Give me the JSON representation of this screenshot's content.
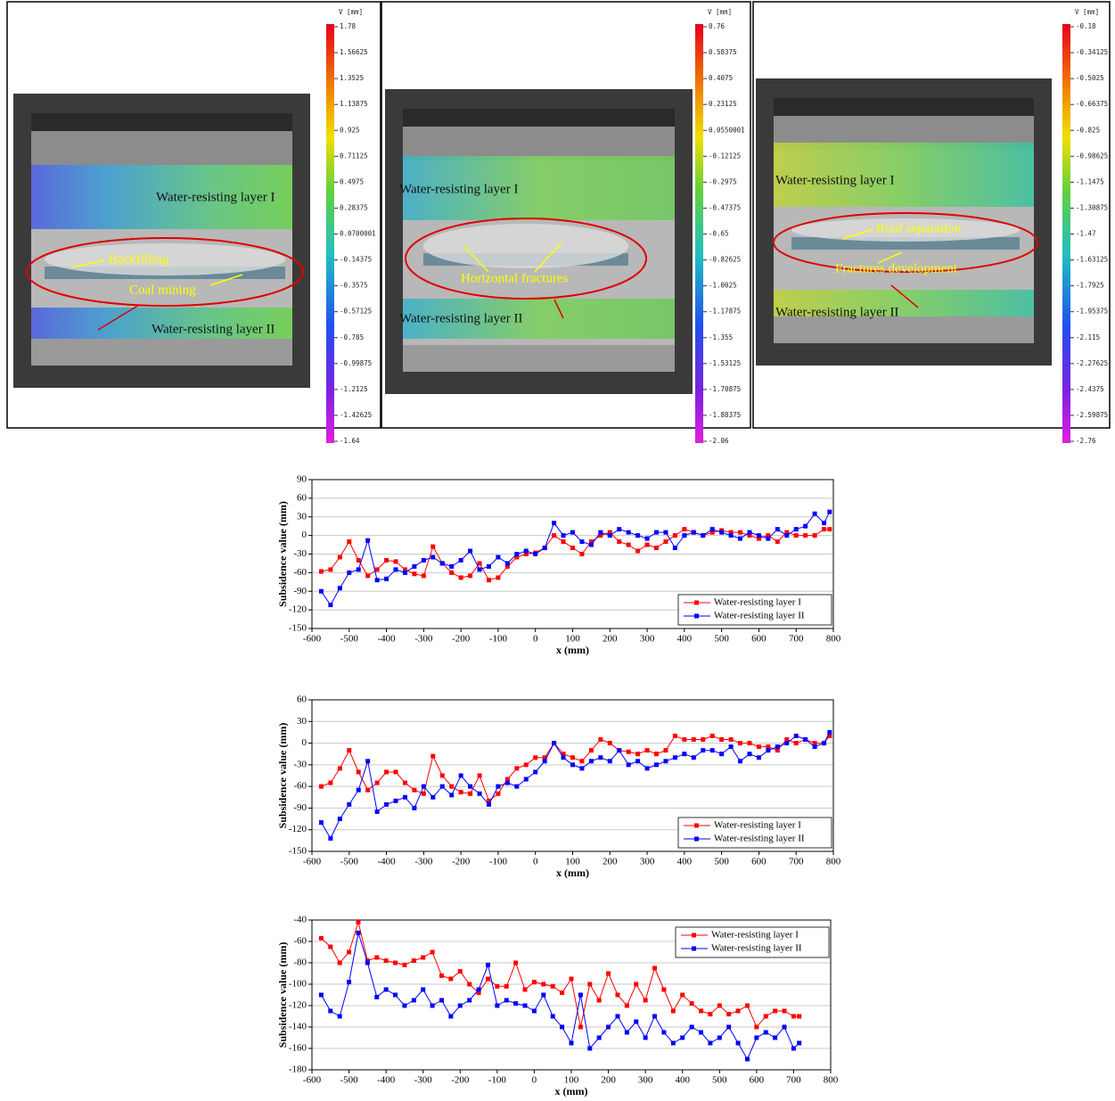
{
  "panels": [
    {
      "colorbar_title": "V [mm]",
      "colorbar_labels": [
        "1.78",
        "1.56625",
        "1.3525",
        "1.13875",
        "0.925",
        "0.71125",
        "0.4975",
        "0.28375",
        "0.0700001",
        "-0.14375",
        "-0.3575",
        "-0.57125",
        "-0.785",
        "-0.99875",
        "-1.2125",
        "-1.42625",
        "-1.64"
      ],
      "annotations": [
        "Water-resisting layer I",
        "Backfilling",
        "Coal mining",
        "Water-resisting layer II"
      ]
    },
    {
      "colorbar_title": "V [mm]",
      "colorbar_labels": [
        "0.76",
        "0.58375",
        "0.4075",
        "0.23125",
        "0.0550001",
        "-0.12125",
        "-0.2975",
        "-0.47375",
        "-0.65",
        "-0.82625",
        "-1.0025",
        "-1.17875",
        "-1.355",
        "-1.53125",
        "-1.70875",
        "-1.88375",
        "-2.06"
      ],
      "annotations": [
        "Water-resisting layer I",
        "Horizontal fractures",
        "Water-resisting layer II"
      ]
    },
    {
      "colorbar_title": "V [mm]",
      "colorbar_labels": [
        "-0.18",
        "-0.34125",
        "-0.5025",
        "-0.66375",
        "-0.825",
        "-0.98625",
        "-1.1475",
        "-1.30875",
        "-1.47",
        "-1.63125",
        "-1.7925",
        "-1.95375",
        "-2.115",
        "-2.27625",
        "-2.4375",
        "-2.59875",
        "-2.76"
      ],
      "annotations": [
        "Water-resisting layer I",
        "Roof  separation",
        "Fractures development",
        "Water-resisting layer II"
      ]
    }
  ],
  "chart_data": [
    {
      "type": "line",
      "x_label": "x (mm)",
      "y_label": "Subsidence value (mm)",
      "xlim": [
        -600,
        800
      ],
      "xticks": [
        -600,
        -500,
        -400,
        -300,
        -200,
        -100,
        0,
        100,
        200,
        300,
        400,
        500,
        600,
        700,
        800
      ],
      "ylim": [
        -150,
        90
      ],
      "yticks": [
        -150,
        -120,
        -90,
        -60,
        -30,
        0,
        30,
        60,
        90
      ],
      "grid": true,
      "legend": "lower right",
      "x": [
        -575,
        -550,
        -525,
        -500,
        -475,
        -450,
        -425,
        -400,
        -375,
        -350,
        -325,
        -300,
        -275,
        -250,
        -225,
        -200,
        -175,
        -150,
        -125,
        -100,
        -75,
        -50,
        -25,
        0,
        25,
        50,
        75,
        100,
        125,
        150,
        175,
        200,
        225,
        250,
        275,
        300,
        325,
        350,
        375,
        400,
        425,
        450,
        475,
        500,
        525,
        550,
        575,
        600,
        625,
        650,
        675,
        700,
        725,
        750,
        775,
        790
      ],
      "series": [
        {
          "name": "Water-resisting layer I",
          "color": "#ff0000",
          "values": [
            -58,
            -55,
            -35,
            -10,
            -40,
            -65,
            -55,
            -40,
            -42,
            -55,
            -62,
            -65,
            -18,
            -45,
            -60,
            -68,
            -65,
            -45,
            -72,
            -68,
            -50,
            -35,
            -30,
            -28,
            -20,
            0,
            -10,
            -20,
            -30,
            -10,
            0,
            5,
            -10,
            -15,
            -25,
            -15,
            -20,
            -10,
            0,
            10,
            5,
            0,
            5,
            8,
            5,
            5,
            0,
            -5,
            0,
            -10,
            5,
            0,
            0,
            0,
            10,
            10
          ]
        },
        {
          "name": "Water-resisting layer II",
          "color": "#0000ff",
          "values": [
            -90,
            -112,
            -85,
            -60,
            -55,
            -8,
            -72,
            -70,
            -55,
            -60,
            -50,
            -40,
            -35,
            -45,
            -50,
            -40,
            -25,
            -55,
            -50,
            -35,
            -45,
            -30,
            -25,
            -30,
            -20,
            20,
            0,
            5,
            -10,
            -15,
            5,
            0,
            10,
            5,
            0,
            -5,
            5,
            5,
            -20,
            0,
            5,
            0,
            10,
            5,
            0,
            -5,
            5,
            0,
            -5,
            10,
            0,
            10,
            15,
            35,
            20,
            38
          ]
        }
      ]
    },
    {
      "type": "line",
      "x_label": "x (mm)",
      "y_label": "Subsidence value (mm)",
      "xlim": [
        -600,
        800
      ],
      "xticks": [
        -600,
        -500,
        -400,
        -300,
        -200,
        -100,
        0,
        100,
        200,
        300,
        400,
        500,
        600,
        700,
        800
      ],
      "ylim": [
        -150,
        60
      ],
      "yticks": [
        -150,
        -120,
        -90,
        -60,
        -30,
        0,
        30,
        60
      ],
      "grid": true,
      "legend": "lower right",
      "x": [
        -575,
        -550,
        -525,
        -500,
        -475,
        -450,
        -425,
        -400,
        -375,
        -350,
        -325,
        -300,
        -275,
        -250,
        -225,
        -200,
        -175,
        -150,
        -125,
        -100,
        -75,
        -50,
        -25,
        0,
        25,
        50,
        75,
        100,
        125,
        150,
        175,
        200,
        225,
        250,
        275,
        300,
        325,
        350,
        375,
        400,
        425,
        450,
        475,
        500,
        525,
        550,
        575,
        600,
        625,
        650,
        675,
        700,
        725,
        750,
        775,
        790
      ],
      "series": [
        {
          "name": "Water-resisting layer I",
          "color": "#ff0000",
          "values": [
            -60,
            -55,
            -35,
            -10,
            -40,
            -65,
            -55,
            -40,
            -40,
            -55,
            -65,
            -70,
            -18,
            -45,
            -60,
            -68,
            -70,
            -45,
            -80,
            -70,
            -50,
            -35,
            -30,
            -20,
            -20,
            0,
            -15,
            -20,
            -25,
            -10,
            5,
            0,
            -10,
            -12,
            -15,
            -10,
            -15,
            -10,
            10,
            5,
            5,
            5,
            10,
            5,
            5,
            0,
            0,
            -5,
            -5,
            -10,
            5,
            0,
            5,
            0,
            0,
            10
          ]
        },
        {
          "name": "Water-resisting layer II",
          "color": "#0000ff",
          "values": [
            -110,
            -132,
            -105,
            -85,
            -65,
            -25,
            -95,
            -85,
            -80,
            -75,
            -90,
            -60,
            -75,
            -60,
            -72,
            -45,
            -60,
            -70,
            -85,
            -60,
            -55,
            -60,
            -50,
            -40,
            -25,
            0,
            -20,
            -30,
            -35,
            -25,
            -20,
            -25,
            -10,
            -30,
            -25,
            -35,
            -30,
            -25,
            -20,
            -15,
            -20,
            -10,
            -10,
            -15,
            -5,
            -25,
            -15,
            -20,
            -10,
            -5,
            0,
            10,
            5,
            -5,
            0,
            15
          ]
        }
      ]
    },
    {
      "type": "line",
      "x_label": "x (mm)",
      "y_label": "Subsidence value (mm)",
      "xlim": [
        -600,
        800
      ],
      "xticks": [
        -600,
        -500,
        -400,
        -300,
        -200,
        -100,
        0,
        100,
        200,
        300,
        400,
        500,
        600,
        700,
        800
      ],
      "ylim": [
        -180,
        -40
      ],
      "yticks": [
        -180,
        -160,
        -140,
        -120,
        -100,
        -80,
        -60,
        -40
      ],
      "grid": true,
      "legend": "upper right",
      "x": [
        -575,
        -550,
        -525,
        -500,
        -475,
        -450,
        -425,
        -400,
        -375,
        -350,
        -325,
        -300,
        -275,
        -250,
        -225,
        -200,
        -175,
        -150,
        -125,
        -100,
        -75,
        -50,
        -25,
        0,
        25,
        50,
        75,
        100,
        125,
        150,
        175,
        200,
        225,
        250,
        275,
        300,
        325,
        350,
        375,
        400,
        425,
        450,
        475,
        500,
        525,
        550,
        575,
        600,
        625,
        650,
        675,
        700,
        715
      ],
      "series": [
        {
          "name": "Water-resisting layer I",
          "color": "#ff0000",
          "values": [
            -57,
            -65,
            -80,
            -70,
            -42,
            -78,
            -75,
            -78,
            -80,
            -82,
            -78,
            -75,
            -70,
            -92,
            -95,
            -88,
            -100,
            -108,
            -95,
            -102,
            -102,
            -80,
            -105,
            -98,
            -100,
            -102,
            -108,
            -95,
            -140,
            -100,
            -115,
            -90,
            -110,
            -120,
            -100,
            -115,
            -85,
            -105,
            -125,
            -110,
            -118,
            -125,
            -128,
            -120,
            -128,
            -125,
            -120,
            -140,
            -130,
            -125,
            -125,
            -130,
            -130
          ]
        },
        {
          "name": "Water-resisting layer II",
          "color": "#0000ff",
          "values": [
            -110,
            -125,
            -130,
            -98,
            -52,
            -80,
            -112,
            -105,
            -110,
            -120,
            -115,
            -105,
            -120,
            -115,
            -130,
            -120,
            -115,
            -105,
            -82,
            -120,
            -115,
            -118,
            -120,
            -125,
            -110,
            -130,
            -140,
            -155,
            -110,
            -160,
            -150,
            -140,
            -130,
            -145,
            -135,
            -150,
            -130,
            -145,
            -155,
            -150,
            -140,
            -145,
            -155,
            -150,
            -140,
            -155,
            -170,
            -150,
            -145,
            -150,
            -140,
            -160,
            -155
          ]
        }
      ]
    }
  ]
}
